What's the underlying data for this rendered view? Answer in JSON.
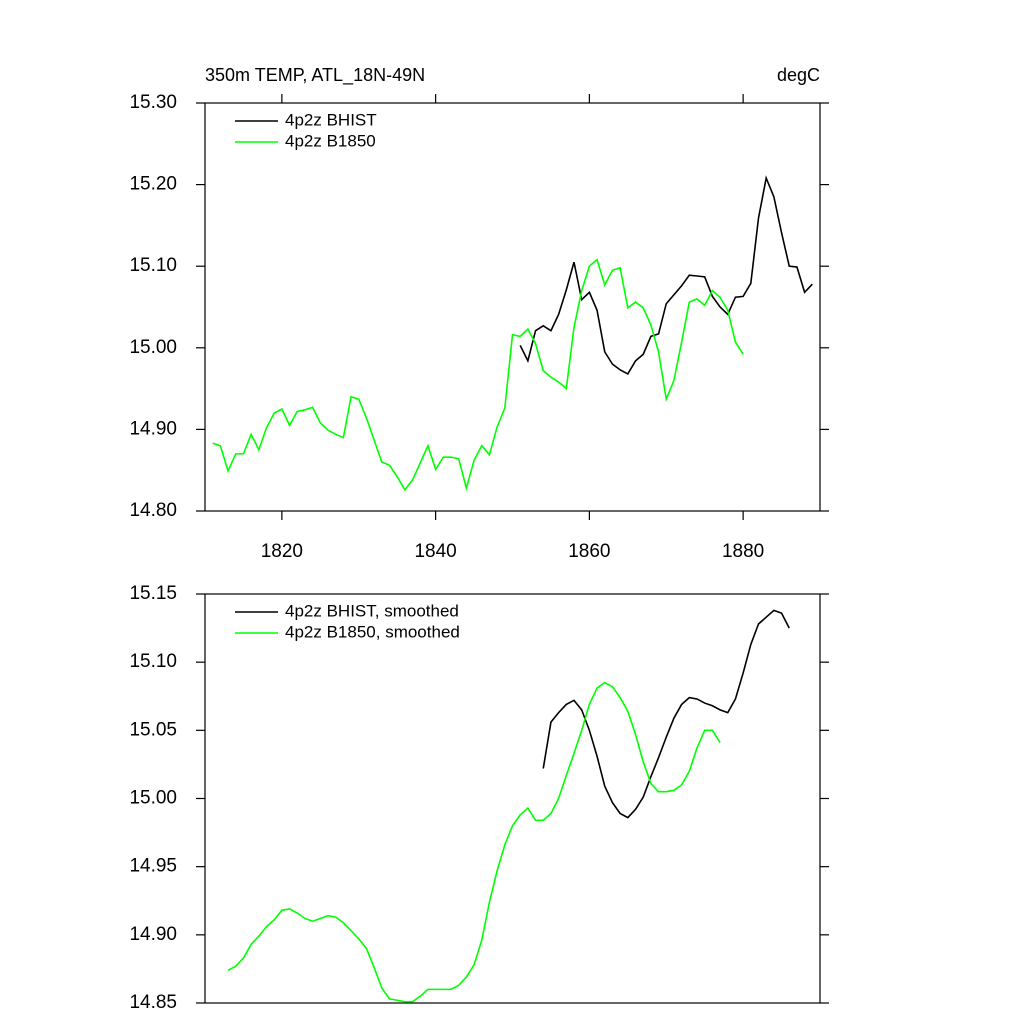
{
  "chart_data": [
    {
      "type": "line",
      "title": "350m TEMP, ATL_18N-49N",
      "subtitle": "degC",
      "xlim": [
        1810,
        1890
      ],
      "xticks": [
        1820,
        1840,
        1860,
        1880
      ],
      "ylim": [
        14.8,
        15.3
      ],
      "yticks": [
        {
          "value": 14.8,
          "label": "14.80"
        },
        {
          "value": 14.9,
          "label": "14.90"
        },
        {
          "value": 15.0,
          "label": "15.00"
        },
        {
          "value": 15.1,
          "label": "15.10"
        },
        {
          "value": 15.2,
          "label": "15.20"
        },
        {
          "value": 15.3,
          "label": "15.30"
        }
      ],
      "series": [
        {
          "name": "4p2z BHIST",
          "color": "#000000",
          "x": [
            1851,
            1852,
            1853,
            1854,
            1855,
            1856,
            1857,
            1858,
            1859,
            1860,
            1861,
            1862,
            1863,
            1864,
            1865,
            1866,
            1867,
            1868,
            1869,
            1870,
            1871,
            1872,
            1873,
            1874,
            1875,
            1876,
            1877,
            1878,
            1879,
            1880,
            1881,
            1882,
            1883,
            1884,
            1885,
            1886,
            1887,
            1888,
            1889
          ],
          "values": [
            15.003,
            14.984,
            15.021,
            15.027,
            15.021,
            15.041,
            15.071,
            15.105,
            15.059,
            15.068,
            15.046,
            14.995,
            14.98,
            14.973,
            14.968,
            14.984,
            14.992,
            15.014,
            15.017,
            15.054,
            15.065,
            15.076,
            15.089,
            15.088,
            15.087,
            15.063,
            15.05,
            15.041,
            15.062,
            15.063,
            15.079,
            15.159,
            15.208,
            15.185,
            15.141,
            15.1,
            15.099,
            15.068,
            15.078
          ]
        },
        {
          "name": "4p2z B1850",
          "color": "#00ff00",
          "x": [
            1811,
            1812,
            1813,
            1814,
            1815,
            1816,
            1817,
            1818,
            1819,
            1820,
            1821,
            1822,
            1823,
            1824,
            1825,
            1826,
            1827,
            1828,
            1829,
            1830,
            1831,
            1832,
            1833,
            1834,
            1835,
            1836,
            1837,
            1838,
            1839,
            1840,
            1841,
            1842,
            1843,
            1844,
            1845,
            1846,
            1847,
            1848,
            1849,
            1850,
            1851,
            1852,
            1853,
            1854,
            1855,
            1856,
            1857,
            1858,
            1859,
            1860,
            1861,
            1862,
            1863,
            1864,
            1865,
            1866,
            1867,
            1868,
            1869,
            1870,
            1871,
            1872,
            1873,
            1874,
            1875,
            1876,
            1877,
            1878,
            1879,
            1880
          ],
          "values": [
            14.883,
            14.88,
            14.849,
            14.87,
            14.87,
            14.894,
            14.875,
            14.902,
            14.92,
            14.925,
            14.905,
            14.922,
            14.924,
            14.927,
            14.908,
            14.899,
            14.894,
            14.89,
            14.94,
            14.937,
            14.914,
            14.887,
            14.86,
            14.856,
            14.842,
            14.826,
            14.838,
            14.859,
            14.88,
            14.851,
            14.866,
            14.866,
            14.864,
            14.828,
            14.862,
            14.88,
            14.869,
            14.903,
            14.926,
            15.016,
            15.014,
            15.023,
            15.005,
            14.972,
            14.964,
            14.958,
            14.95,
            15.025,
            15.07,
            15.1,
            15.108,
            15.077,
            15.095,
            15.098,
            15.049,
            15.056,
            15.049,
            15.028,
            14.995,
            14.937,
            14.96,
            15.007,
            15.056,
            15.06,
            15.052,
            15.07,
            15.062,
            15.046,
            15.007,
            14.992
          ]
        }
      ]
    },
    {
      "type": "line",
      "xlim": [
        1810,
        1890
      ],
      "ylim": [
        14.85,
        15.15
      ],
      "yticks": [
        14.85,
        {
          "value": 14.9,
          "label": "14.90"
        },
        14.95,
        {
          "value": 15.0,
          "label": "15.00"
        },
        15.05,
        {
          "value": 15.1,
          "label": "15.10"
        },
        15.15
      ],
      "series": [
        {
          "name": "4p2z BHIST, smoothed",
          "color": "#000000",
          "x": [
            1854,
            1855,
            1856,
            1857,
            1858,
            1859,
            1860,
            1861,
            1862,
            1863,
            1864,
            1865,
            1866,
            1867,
            1868,
            1869,
            1870,
            1871,
            1872,
            1873,
            1874,
            1875,
            1876,
            1877,
            1878,
            1879,
            1880,
            1881,
            1882,
            1883,
            1884,
            1885,
            1886
          ],
          "values": [
            15.022,
            15.056,
            15.063,
            15.069,
            15.072,
            15.065,
            15.05,
            15.031,
            15.009,
            14.997,
            14.989,
            14.986,
            14.992,
            15.001,
            15.016,
            15.03,
            15.045,
            15.059,
            15.069,
            15.074,
            15.073,
            15.07,
            15.068,
            15.065,
            15.063,
            15.073,
            15.092,
            15.113,
            15.128,
            15.133,
            15.138,
            15.136,
            15.125
          ]
        },
        {
          "name": "4p2z B1850, smoothed",
          "color": "#00ff00",
          "x": [
            1813,
            1814,
            1815,
            1816,
            1817,
            1818,
            1819,
            1820,
            1821,
            1822,
            1823,
            1824,
            1825,
            1826,
            1827,
            1828,
            1829,
            1830,
            1831,
            1832,
            1833,
            1834,
            1835,
            1836,
            1837,
            1838,
            1839,
            1840,
            1841,
            1842,
            1843,
            1844,
            1845,
            1846,
            1847,
            1848,
            1849,
            1850,
            1851,
            1852,
            1853,
            1854,
            1855,
            1856,
            1857,
            1858,
            1859,
            1860,
            1861,
            1862,
            1863,
            1864,
            1865,
            1866,
            1867,
            1868,
            1869,
            1870,
            1871,
            1872,
            1873,
            1874,
            1875,
            1876,
            1877
          ],
          "values": [
            14.874,
            14.877,
            14.883,
            14.893,
            14.899,
            14.906,
            14.911,
            14.918,
            14.919,
            14.916,
            14.912,
            14.91,
            14.912,
            14.914,
            14.913,
            14.909,
            14.903,
            14.897,
            14.89,
            14.876,
            14.861,
            14.853,
            14.852,
            14.851,
            14.851,
            14.855,
            14.86,
            14.86,
            14.86,
            14.86,
            14.863,
            14.869,
            14.878,
            14.896,
            14.924,
            14.947,
            14.966,
            14.98,
            14.988,
            14.993,
            14.984,
            14.984,
            14.989,
            15.0,
            15.017,
            15.033,
            15.05,
            15.069,
            15.081,
            15.085,
            15.082,
            15.074,
            15.064,
            15.047,
            15.027,
            15.011,
            15.005,
            15.005,
            15.006,
            15.01,
            15.02,
            15.037,
            15.05,
            15.05,
            15.041
          ]
        }
      ]
    }
  ]
}
